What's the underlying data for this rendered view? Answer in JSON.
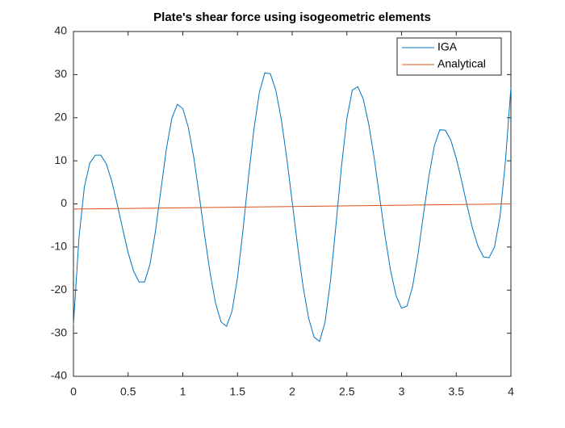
{
  "chart_data": {
    "type": "line",
    "title": "Plate's shear force using isogeometric elements",
    "series": [
      {
        "name": "IGA",
        "color": "#0072bd",
        "x": [
          0,
          0.05,
          0.1,
          0.15,
          0.2,
          0.25,
          0.3,
          0.35,
          0.4,
          0.45,
          0.5,
          0.55,
          0.6,
          0.65,
          0.7,
          0.75,
          0.8,
          0.85,
          0.9,
          0.95,
          1,
          1.05,
          1.1,
          1.15,
          1.2,
          1.25,
          1.3,
          1.35,
          1.4,
          1.45,
          1.5,
          1.55,
          1.6,
          1.65,
          1.7,
          1.75,
          1.8,
          1.85,
          1.9,
          1.95,
          2,
          2.05,
          2.1,
          2.15,
          2.2,
          2.25,
          2.3,
          2.35,
          2.4,
          2.45,
          2.5,
          2.55,
          2.6,
          2.65,
          2.7,
          2.75,
          2.8,
          2.85,
          2.9,
          2.95,
          3,
          3.05,
          3.1,
          3.15,
          3.2,
          3.25,
          3.3,
          3.35,
          3.4,
          3.45,
          3.5,
          3.55,
          3.6,
          3.65,
          3.7,
          3.75,
          3.8,
          3.85,
          3.9,
          3.95,
          4
        ],
        "values": [
          -28,
          -8,
          4,
          9.5,
          11.3,
          11.3,
          9.3,
          5.3,
          0,
          -5.8,
          -11.3,
          -15.6,
          -18.1,
          -18.1,
          -14,
          -6.3,
          3.3,
          12.8,
          19.9,
          23.1,
          22.1,
          17.8,
          10.8,
          2,
          -7.4,
          -16.1,
          -23.1,
          -27.4,
          -28.4,
          -24.9,
          -17.1,
          -6.1,
          6.1,
          17.3,
          25.9,
          30.4,
          30.2,
          26.4,
          19.7,
          10.7,
          0.5,
          -9.9,
          -19.2,
          -26.5,
          -30.9,
          -31.9,
          -27.5,
          -17.9,
          -5,
          8.5,
          19.8,
          26.4,
          27.2,
          24.3,
          18.5,
          10.6,
          1.5,
          -7.6,
          -15.5,
          -21.3,
          -24.2,
          -23.7,
          -19.3,
          -11.8,
          -2.5,
          6.4,
          13.5,
          17.2,
          17.1,
          14.8,
          10.6,
          5.3,
          -0.5,
          -5.8,
          -9.9,
          -12.3,
          -12.5,
          -10,
          -3,
          10,
          27
        ]
      },
      {
        "name": "Analytical",
        "color": "#d95319",
        "x": [
          0,
          4
        ],
        "values": [
          -1.2,
          0
        ]
      }
    ],
    "xlim": [
      0,
      4
    ],
    "xticks": [
      0,
      0.5,
      1,
      1.5,
      2,
      2.5,
      3,
      3.5,
      4
    ],
    "ylim": [
      -40,
      40
    ],
    "yticks": [
      -40,
      -30,
      -20,
      -10,
      0,
      10,
      20,
      30,
      40
    ],
    "legend": "northeast"
  }
}
